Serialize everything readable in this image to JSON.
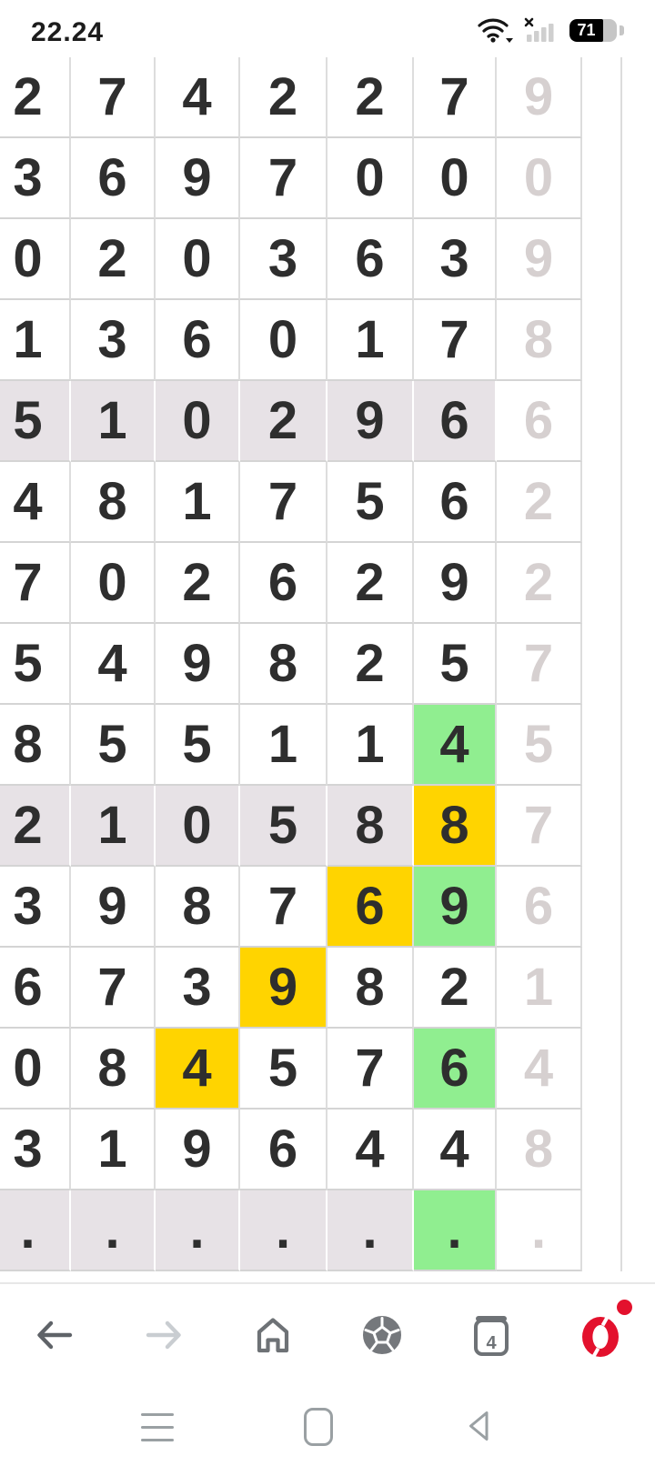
{
  "status_bar": {
    "time": "22.24",
    "battery_percent": "71",
    "wifi_state": "connected-with-dropdown-arrow",
    "cellular_state": "no-service-x"
  },
  "grid": {
    "columns": 7,
    "muted_last_column": true,
    "colors": {
      "yellow": "#ffd400",
      "green": "#90ee90",
      "lavender_row": "#e7e2e6",
      "muted_text": "#d6d0d0",
      "text": "#2e2e2e",
      "grid_line": "#d6d6d6"
    },
    "rows": [
      {
        "bg": "white",
        "cells": [
          "2",
          "7",
          "4",
          "2",
          "2",
          "7",
          "9"
        ],
        "hl": {}
      },
      {
        "bg": "white",
        "cells": [
          "3",
          "6",
          "9",
          "7",
          "0",
          "0",
          "0"
        ],
        "hl": {}
      },
      {
        "bg": "white",
        "cells": [
          "0",
          "2",
          "0",
          "3",
          "6",
          "3",
          "9"
        ],
        "hl": {}
      },
      {
        "bg": "white",
        "cells": [
          "1",
          "3",
          "6",
          "0",
          "1",
          "7",
          "8"
        ],
        "hl": {}
      },
      {
        "bg": "lavender",
        "cells": [
          "5",
          "1",
          "0",
          "2",
          "9",
          "6",
          "6"
        ],
        "hl": {}
      },
      {
        "bg": "white",
        "cells": [
          "4",
          "8",
          "1",
          "7",
          "5",
          "6",
          "2"
        ],
        "hl": {}
      },
      {
        "bg": "white",
        "cells": [
          "7",
          "0",
          "2",
          "6",
          "2",
          "9",
          "2"
        ],
        "hl": {}
      },
      {
        "bg": "white",
        "cells": [
          "5",
          "4",
          "9",
          "8",
          "2",
          "5",
          "7"
        ],
        "hl": {}
      },
      {
        "bg": "white",
        "cells": [
          "8",
          "5",
          "5",
          "1",
          "1",
          "4",
          "5"
        ],
        "hl": {
          "5": "green"
        }
      },
      {
        "bg": "lavender",
        "cells": [
          "2",
          "1",
          "0",
          "5",
          "8",
          "8",
          "7"
        ],
        "hl": {
          "5": "yellow"
        }
      },
      {
        "bg": "white",
        "cells": [
          "3",
          "9",
          "8",
          "7",
          "6",
          "9",
          "6"
        ],
        "hl": {
          "4": "yellow",
          "5": "green"
        }
      },
      {
        "bg": "white",
        "cells": [
          "6",
          "7",
          "3",
          "9",
          "8",
          "2",
          "1"
        ],
        "hl": {
          "3": "yellow"
        }
      },
      {
        "bg": "white",
        "cells": [
          "0",
          "8",
          "4",
          "5",
          "7",
          "6",
          "4"
        ],
        "hl": {
          "2": "yellow",
          "5": "green"
        }
      },
      {
        "bg": "white",
        "cells": [
          "3",
          "1",
          "9",
          "6",
          "4",
          "4",
          "8"
        ],
        "hl": {}
      },
      {
        "bg": "lavender",
        "cells": [
          ".",
          ".",
          ".",
          ".",
          ".",
          ".",
          "."
        ],
        "hl": {
          "5": "green"
        }
      }
    ]
  },
  "browser_nav": {
    "tab_count": "4",
    "buttons": [
      "back",
      "forward",
      "home",
      "football-scores",
      "tabs",
      "opera-menu"
    ],
    "forward_disabled": true,
    "opera_red": "#e3112d",
    "icon_gray": "#6e7276",
    "icon_disabled_gray": "#c9cdd1"
  },
  "system_nav": {
    "buttons": [
      "recent-menu",
      "home",
      "back"
    ],
    "icon_gray": "#9aa0a3"
  }
}
